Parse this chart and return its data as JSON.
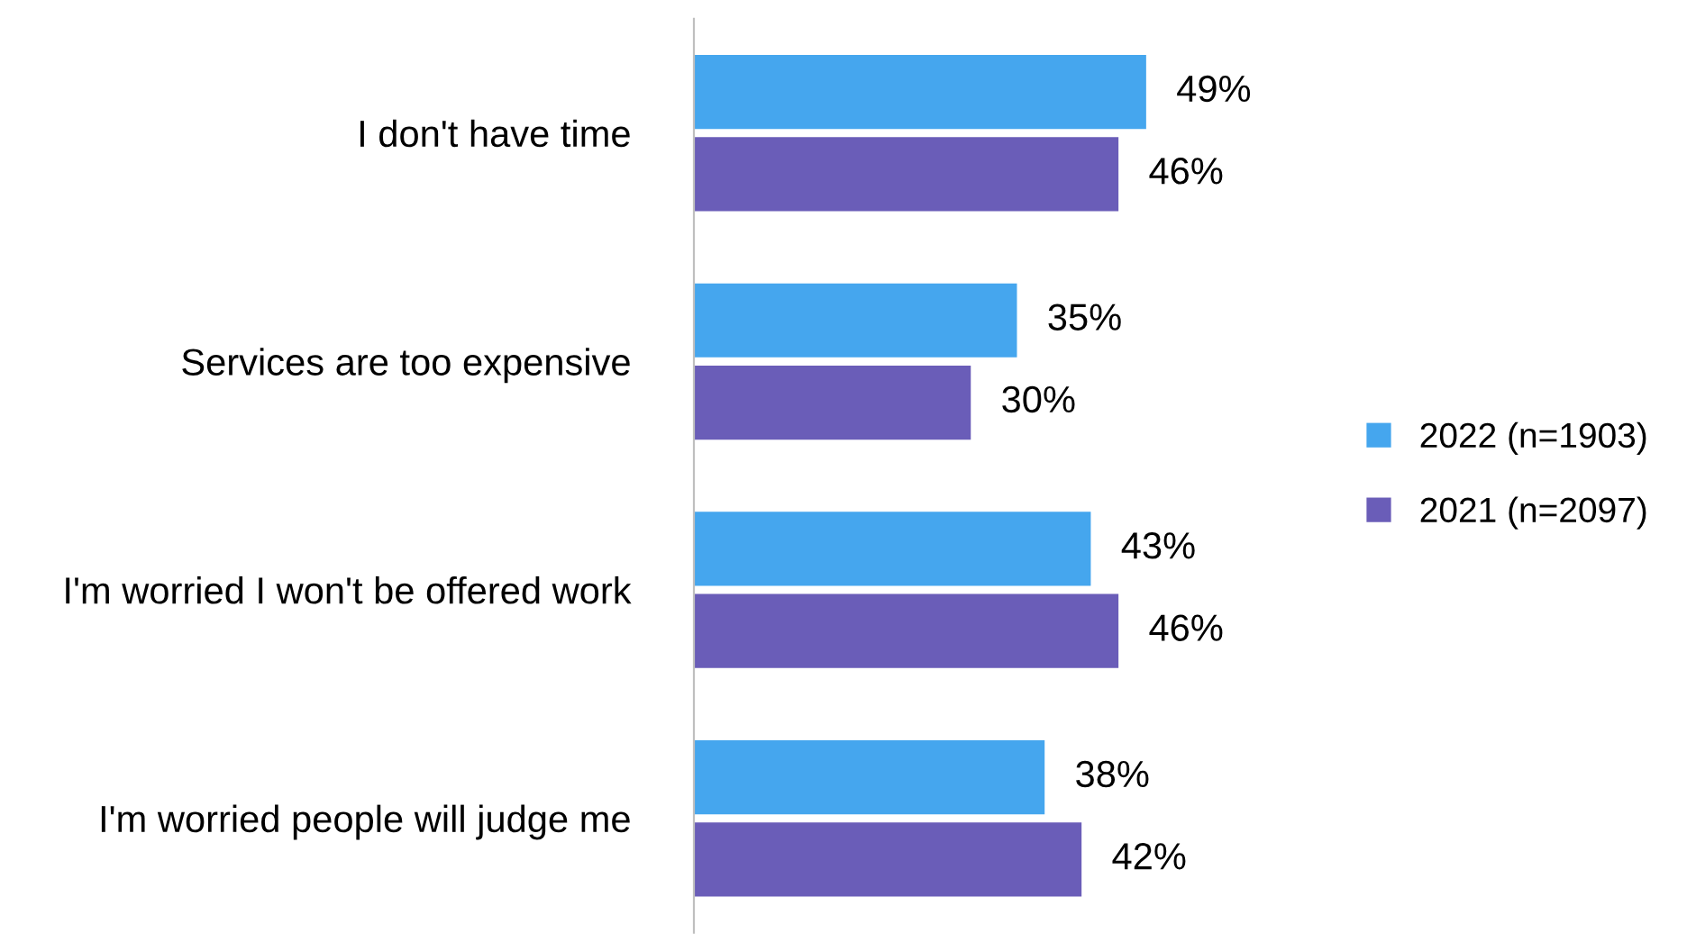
{
  "chart_data": {
    "type": "bar",
    "orientation": "horizontal",
    "categories": [
      "I don't have time",
      "Services are too expensive",
      "I'm worried I won't be offered work",
      "I'm worried people will judge me"
    ],
    "series": [
      {
        "name": "2022 (n=1903)",
        "color": "#45a6ee",
        "values": [
          49,
          35,
          43,
          38
        ],
        "value_labels": [
          "49%",
          "35%",
          "43%",
          "38%"
        ]
      },
      {
        "name": "2021 (n=2097)",
        "color": "#6a5db8",
        "values": [
          46,
          30,
          46,
          42
        ],
        "value_labels": [
          "46%",
          "30%",
          "46%",
          "42%"
        ]
      }
    ],
    "legend": "right",
    "grid": false
  }
}
